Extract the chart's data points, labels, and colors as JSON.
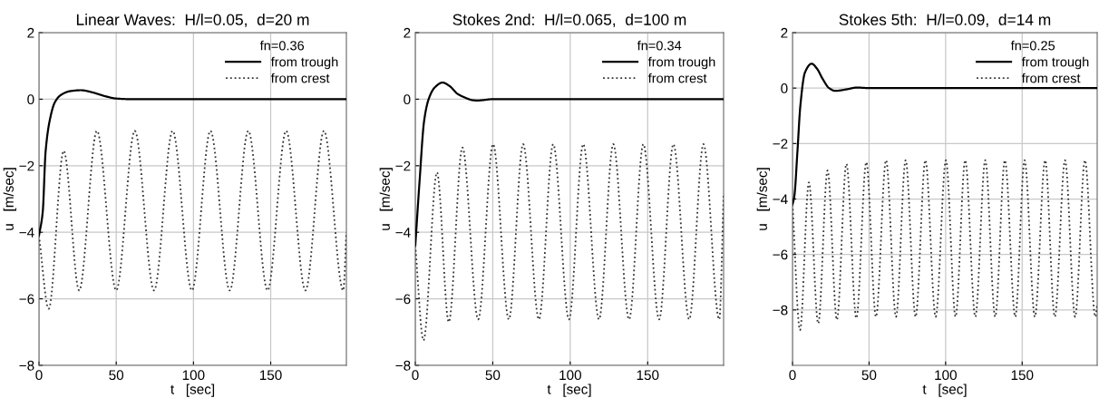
{
  "chart_data": [
    {
      "type": "line",
      "title": "Linear Waves:  H/l=0.05,  d=20 m",
      "xlabel": "t   [sec]",
      "ylabel": "u   [m/sec]",
      "legend_title": "fn=0.36",
      "legend": "top right",
      "grid": true,
      "xlim": [
        0,
        199
      ],
      "xticks": [
        0,
        50,
        100,
        150
      ],
      "ylim": [
        -8,
        2
      ],
      "yticks": [
        -8,
        -6,
        -4,
        -2,
        0,
        2
      ],
      "series": [
        {
          "name": "from trough",
          "color": "#000000",
          "line_style": "solid",
          "x": [
            0,
            2.4,
            4.3,
            7.3,
            10.2,
            14,
            20,
            27,
            35,
            42,
            50,
            60,
            199
          ],
          "values": [
            -4.1,
            -3.4,
            -1.56,
            -0.56,
            -0.1,
            0.12,
            0.24,
            0.27,
            0.2,
            0.1,
            0.02,
            0,
            0
          ]
        },
        {
          "name": "from crest",
          "color": "#333333",
          "line_style": "dotted",
          "x": [
            0,
            6.3,
            16,
            26,
            37.5,
            50,
            62,
            74.5,
            86.5,
            99,
            111,
            123.5,
            135.5,
            148,
            160,
            172.5,
            184.5,
            197,
            199
          ],
          "values": [
            -4.1,
            -6.3,
            -1.55,
            -5.75,
            -0.95,
            -5.75,
            -0.95,
            -5.75,
            -0.95,
            -5.75,
            -0.95,
            -5.75,
            -0.95,
            -5.75,
            -0.95,
            -5.75,
            -0.95,
            -5.75,
            -4.0
          ]
        }
      ]
    },
    {
      "type": "line",
      "title": "Stokes 2nd:  H/l=0.065,  d=100 m",
      "xlabel": "t   [sec]",
      "ylabel": "u   [m/sec]",
      "legend_title": "fn=0.34",
      "legend": "top right",
      "grid": true,
      "xlim": [
        0,
        199
      ],
      "xticks": [
        0,
        50,
        100,
        150
      ],
      "ylim": [
        -8,
        2
      ],
      "yticks": [
        -8,
        -6,
        -4,
        -2,
        0,
        2
      ],
      "series": [
        {
          "name": "from trough",
          "color": "#000000",
          "line_style": "solid",
          "x": [
            0,
            2.7,
            5.7,
            8.6,
            12.5,
            17.6,
            22,
            27.3,
            32,
            37,
            40,
            50,
            199
          ],
          "values": [
            -4.4,
            -2.5,
            -0.65,
            0,
            0.35,
            0.5,
            0.4,
            0.16,
            0.05,
            -0.03,
            -0.04,
            0,
            0
          ]
        },
        {
          "name": "from crest",
          "color": "#333333",
          "line_style": "dotted",
          "x": [
            0,
            5.3,
            14,
            21.6,
            30.4,
            40.6,
            50.2,
            60.4,
            69.6,
            79.8,
            89,
            99.2,
            108.4,
            118.6,
            127.8,
            138,
            147.2,
            157.4,
            166.6,
            176.8,
            186,
            196.2,
            199
          ],
          "values": [
            -4.4,
            -7.25,
            -2.2,
            -6.7,
            -1.45,
            -6.62,
            -1.35,
            -6.62,
            -1.35,
            -6.62,
            -1.35,
            -6.62,
            -1.35,
            -6.62,
            -1.35,
            -6.62,
            -1.35,
            -6.62,
            -1.35,
            -6.62,
            -1.35,
            -6.62,
            -2.9
          ]
        }
      ]
    },
    {
      "type": "line",
      "title": "Stokes 5th:  H/l=0.09,  d=14 m",
      "xlabel": "t   [sec]",
      "ylabel": "u   [m/sec]",
      "legend_title": "fn=0.25",
      "legend": "top right",
      "grid": true,
      "xlim": [
        0,
        199
      ],
      "xticks": [
        0,
        50,
        100,
        150
      ],
      "ylim": [
        -10,
        2
      ],
      "yticks": [
        -8,
        -6,
        -4,
        -2,
        0,
        2
      ],
      "series": [
        {
          "name": "from trough",
          "color": "#000000",
          "line_style": "solid",
          "x": [
            0,
            1.2,
            3.2,
            5.1,
            8.1,
            12.5,
            16,
            19.6,
            23.9,
            27.9,
            35.8,
            42,
            50,
            199
          ],
          "values": [
            -4.2,
            -3.9,
            -2.3,
            -0.65,
            0.56,
            0.88,
            0.7,
            0.34,
            0,
            -0.1,
            -0.04,
            0.02,
            0,
            0
          ]
        },
        {
          "name": "from crest",
          "color": "#333333",
          "line_style": "dotted",
          "x": [
            0,
            4.9,
            10.7,
            16.8,
            22.9,
            29,
            35.2,
            41.7,
            48.2,
            54.5,
            61.1,
            67.6,
            73.9,
            80.4,
            86.8,
            93.5,
            100.2,
            106.5,
            112.8,
            119.4,
            125.9,
            132.4,
            138.7,
            145.5,
            151.6,
            158.3,
            165,
            171.3,
            178,
            184.6,
            191,
            197.8,
            199
          ],
          "values": [
            -4.2,
            -8.73,
            -3.4,
            -8.49,
            -2.97,
            -8.36,
            -2.73,
            -8.3,
            -2.67,
            -8.25,
            -2.6,
            -8.25,
            -2.6,
            -8.25,
            -2.6,
            -8.25,
            -2.6,
            -8.25,
            -2.6,
            -8.25,
            -2.6,
            -8.25,
            -2.6,
            -8.25,
            -2.6,
            -8.25,
            -2.6,
            -8.25,
            -2.6,
            -8.25,
            -2.6,
            -8.25,
            -7.8
          ]
        }
      ]
    }
  ]
}
